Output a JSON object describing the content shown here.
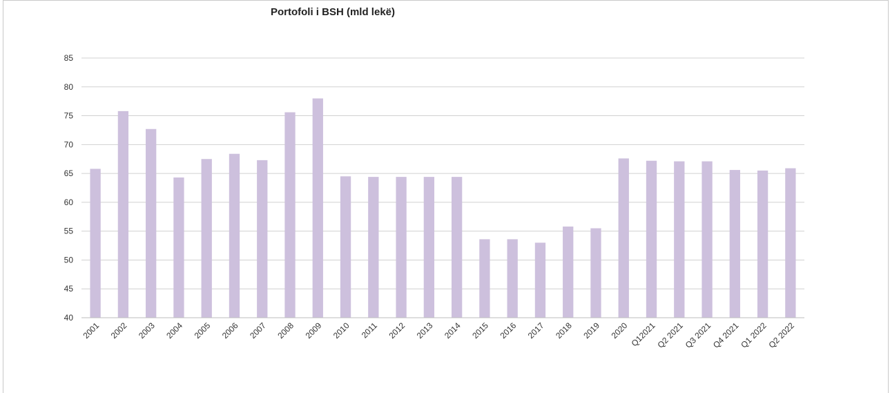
{
  "chart_data": {
    "type": "bar",
    "title": "Portofoli i BSH (mld lekë)",
    "xlabel": "",
    "ylabel": "",
    "ylim": [
      40,
      85
    ],
    "yticks": [
      40,
      45,
      50,
      55,
      60,
      65,
      70,
      75,
      80,
      85
    ],
    "grid": true,
    "legend": "none",
    "bar_color": "#CDC0DD",
    "grid_color": "#D0D0D0",
    "categories": [
      "2001",
      "2002",
      "2003",
      "2004",
      "2005",
      "2006",
      "2007",
      "2008",
      "2009",
      "2010",
      "2011",
      "2012",
      "2013",
      "2014",
      "2015",
      "2016",
      "2017",
      "2018",
      "2019",
      "2020",
      "Q12021",
      "Q2 2021",
      "Q3 2021",
      "Q4 2021",
      "Q1 2022",
      "Q2 2022"
    ],
    "values": [
      65.8,
      75.8,
      72.7,
      64.3,
      67.5,
      68.4,
      67.3,
      75.6,
      78.0,
      64.5,
      64.4,
      64.4,
      64.4,
      64.4,
      53.6,
      53.6,
      53.0,
      55.8,
      55.5,
      67.6,
      67.2,
      67.1,
      67.1,
      65.6,
      65.5,
      65.9
    ]
  }
}
